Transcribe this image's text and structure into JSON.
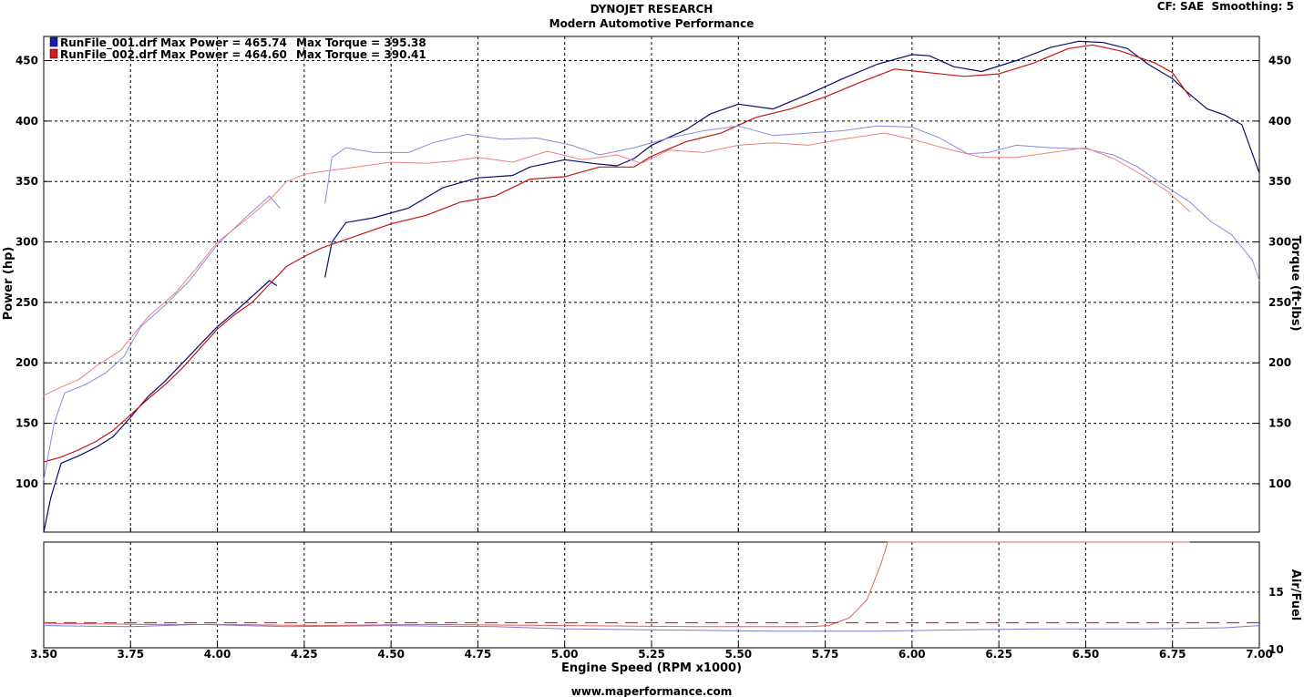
{
  "header": {
    "title": "DYNOJET RESEARCH",
    "subtitle": "Modern Automotive Performance",
    "info": "CF: SAE  Smoothing: 5",
    "footer": "www.maperformance.com"
  },
  "legend": [
    {
      "name": "RunFile_001.drf",
      "power_label": "Max Power = 465.74",
      "torque_label": "Max Torque = 395.38",
      "color": "#1a1ab4"
    },
    {
      "name": "RunFile_002.drf",
      "power_label": "Max Power = 464.60",
      "torque_label": "Max Torque = 390.41",
      "color": "#d21e1e"
    }
  ],
  "colors": {
    "run1_dark": "#0b0b6e",
    "run1_light": "#8a8ae0",
    "run2_dark": "#c81414",
    "run2_light": "#f08080"
  },
  "chart_data": [
    {
      "type": "line",
      "xlabel": "Engine Speed (RPM x1000)",
      "ylabel": "Power (hp)",
      "y2label": "Torque (ft-lbs)",
      "xlim": [
        3.5,
        7.0
      ],
      "ylim": [
        60,
        470
      ],
      "y2lim": [
        60,
        470
      ],
      "xticks": [
        "3.50",
        "3.75",
        "4.00",
        "4.25",
        "4.50",
        "4.75",
        "5.00",
        "5.25",
        "5.50",
        "5.75",
        "6.00",
        "6.25",
        "6.50",
        "6.75",
        "7.00"
      ],
      "yticks": [
        "100",
        "150",
        "200",
        "250",
        "300",
        "350",
        "400",
        "450"
      ],
      "grid": true,
      "legend_position": "top-left",
      "series": [
        {
          "name": "RunFile_001.drf",
          "measure": "power",
          "color": "#0b0b6e",
          "width": 1.2,
          "segments": [
            [
              [
                3.5,
                60
              ],
              [
                3.52,
                88
              ],
              [
                3.55,
                117
              ],
              [
                3.6,
                123
              ],
              [
                3.65,
                130
              ],
              [
                3.7,
                139
              ],
              [
                3.75,
                155
              ],
              [
                3.8,
                172
              ],
              [
                3.85,
                185
              ],
              [
                3.9,
                200
              ],
              [
                3.95,
                215
              ],
              [
                4.0,
                230
              ],
              [
                4.05,
                242
              ],
              [
                4.1,
                255
              ],
              [
                4.15,
                268
              ],
              [
                4.17,
                264
              ]
            ],
            [
              [
                4.31,
                271
              ],
              [
                4.33,
                300
              ],
              [
                4.37,
                316
              ],
              [
                4.45,
                320
              ],
              [
                4.55,
                328
              ],
              [
                4.65,
                345
              ],
              [
                4.75,
                353
              ],
              [
                4.85,
                355
              ],
              [
                4.9,
                362
              ],
              [
                5.0,
                368
              ],
              [
                5.08,
                365
              ],
              [
                5.15,
                363
              ],
              [
                5.2,
                369
              ],
              [
                5.25,
                380
              ],
              [
                5.35,
                393
              ],
              [
                5.42,
                406
              ],
              [
                5.5,
                414
              ],
              [
                5.6,
                410
              ],
              [
                5.7,
                422
              ],
              [
                5.8,
                435
              ],
              [
                5.9,
                447
              ],
              [
                6.0,
                455
              ],
              [
                6.05,
                454
              ],
              [
                6.12,
                445
              ],
              [
                6.2,
                441
              ],
              [
                6.3,
                450
              ],
              [
                6.4,
                461
              ],
              [
                6.48,
                466
              ],
              [
                6.55,
                465
              ],
              [
                6.62,
                460
              ],
              [
                6.68,
                447
              ],
              [
                6.75,
                435
              ],
              [
                6.8,
                422
              ],
              [
                6.85,
                410
              ],
              [
                6.9,
                405
              ],
              [
                6.95,
                397
              ],
              [
                7.0,
                357
              ]
            ]
          ]
        },
        {
          "name": "RunFile_002.drf",
          "measure": "power",
          "color": "#c81414",
          "width": 1.2,
          "segments": [
            [
              [
                3.5,
                118
              ],
              [
                3.55,
                122
              ],
              [
                3.6,
                128
              ],
              [
                3.65,
                135
              ],
              [
                3.7,
                144
              ],
              [
                3.75,
                157
              ],
              [
                3.8,
                170
              ],
              [
                3.85,
                182
              ],
              [
                3.9,
                196
              ],
              [
                3.95,
                212
              ],
              [
                4.0,
                228
              ],
              [
                4.05,
                240
              ],
              [
                4.1,
                250
              ],
              [
                4.15,
                265
              ],
              [
                4.2,
                280
              ],
              [
                4.25,
                288
              ],
              [
                4.3,
                295
              ],
              [
                4.4,
                305
              ],
              [
                4.5,
                315
              ],
              [
                4.6,
                322
              ],
              [
                4.7,
                333
              ],
              [
                4.8,
                338
              ],
              [
                4.9,
                352
              ],
              [
                5.0,
                354
              ],
              [
                5.1,
                362
              ],
              [
                5.2,
                362
              ],
              [
                5.25,
                371
              ],
              [
                5.35,
                383
              ],
              [
                5.45,
                390
              ],
              [
                5.55,
                403
              ],
              [
                5.65,
                410
              ],
              [
                5.75,
                420
              ],
              [
                5.85,
                432
              ],
              [
                5.95,
                443
              ],
              [
                6.05,
                440
              ],
              [
                6.15,
                437
              ],
              [
                6.25,
                439
              ],
              [
                6.35,
                448
              ],
              [
                6.45,
                460
              ],
              [
                6.52,
                463
              ],
              [
                6.6,
                458
              ],
              [
                6.7,
                448
              ],
              [
                6.75,
                440
              ],
              [
                6.8,
                420
              ]
            ]
          ]
        },
        {
          "name": "RunFile_001.drf",
          "measure": "torque",
          "color": "#8a8ae0",
          "width": 1,
          "segments": [
            [
              [
                3.5,
                103
              ],
              [
                3.53,
                150
              ],
              [
                3.56,
                175
              ],
              [
                3.62,
                182
              ],
              [
                3.68,
                192
              ],
              [
                3.73,
                205
              ],
              [
                3.78,
                230
              ],
              [
                3.85,
                248
              ],
              [
                3.92,
                268
              ],
              [
                4.0,
                298
              ],
              [
                4.08,
                320
              ],
              [
                4.15,
                338
              ],
              [
                4.18,
                328
              ]
            ],
            [
              [
                4.31,
                332
              ],
              [
                4.33,
                370
              ],
              [
                4.37,
                378
              ],
              [
                4.45,
                374
              ],
              [
                4.55,
                374
              ],
              [
                4.62,
                382
              ],
              [
                4.72,
                389
              ],
              [
                4.82,
                385
              ],
              [
                4.92,
                386
              ],
              [
                5.02,
                380
              ],
              [
                5.1,
                372
              ],
              [
                5.2,
                378
              ],
              [
                5.3,
                386
              ],
              [
                5.4,
                392
              ],
              [
                5.5,
                396
              ],
              [
                5.6,
                388
              ],
              [
                5.7,
                390
              ],
              [
                5.8,
                392
              ],
              [
                5.9,
                396
              ],
              [
                6.0,
                395
              ],
              [
                6.08,
                386
              ],
              [
                6.16,
                373
              ],
              [
                6.22,
                374
              ],
              [
                6.3,
                380
              ],
              [
                6.4,
                378
              ],
              [
                6.5,
                377
              ],
              [
                6.58,
                372
              ],
              [
                6.65,
                362
              ],
              [
                6.72,
                348
              ],
              [
                6.8,
                333
              ],
              [
                6.86,
                317
              ],
              [
                6.92,
                306
              ],
              [
                6.98,
                285
              ],
              [
                7.0,
                268
              ]
            ]
          ]
        },
        {
          "name": "RunFile_002.drf",
          "measure": "torque",
          "color": "#f08080",
          "width": 1,
          "segments": [
            [
              [
                3.5,
                173
              ],
              [
                3.55,
                180
              ],
              [
                3.6,
                186
              ],
              [
                3.65,
                197
              ],
              [
                3.72,
                210
              ],
              [
                3.8,
                238
              ],
              [
                3.88,
                258
              ],
              [
                3.95,
                282
              ],
              [
                4.0,
                300
              ],
              [
                4.08,
                318
              ],
              [
                4.15,
                335
              ],
              [
                4.2,
                350
              ],
              [
                4.25,
                356
              ],
              [
                4.32,
                359
              ],
              [
                4.4,
                362
              ],
              [
                4.5,
                366
              ],
              [
                4.6,
                365
              ],
              [
                4.68,
                367
              ],
              [
                4.75,
                370
              ],
              [
                4.85,
                366
              ],
              [
                4.95,
                375
              ],
              [
                5.05,
                368
              ],
              [
                5.15,
                372
              ],
              [
                5.22,
                365
              ],
              [
                5.3,
                376
              ],
              [
                5.4,
                374
              ],
              [
                5.5,
                380
              ],
              [
                5.6,
                382
              ],
              [
                5.7,
                380
              ],
              [
                5.8,
                385
              ],
              [
                5.92,
                390
              ],
              [
                6.0,
                385
              ],
              [
                6.1,
                377
              ],
              [
                6.2,
                370
              ],
              [
                6.3,
                370
              ],
              [
                6.4,
                374
              ],
              [
                6.5,
                378
              ],
              [
                6.58,
                369
              ],
              [
                6.66,
                356
              ],
              [
                6.74,
                341
              ],
              [
                6.8,
                325
              ]
            ]
          ]
        }
      ]
    },
    {
      "type": "line",
      "xlabel": "Engine Speed (RPM x1000)",
      "y2label": "Air/Fuel",
      "xlim": [
        3.5,
        7.0
      ],
      "y2lim": [
        10,
        19.5
      ],
      "xticks": [
        "3.50",
        "3.75",
        "4.00",
        "4.25",
        "4.50",
        "4.75",
        "5.00",
        "5.25",
        "5.50",
        "5.75",
        "6.00",
        "6.25",
        "6.50",
        "6.75",
        "7.00"
      ],
      "y2ticks": [
        "10",
        "15"
      ],
      "grid": true,
      "series": [
        {
          "name": "RunFile_001.drf",
          "measure": "air_fuel",
          "color": "#7a7ad8",
          "width": 1,
          "points": [
            [
              3.5,
              12.0
            ],
            [
              3.75,
              11.9
            ],
            [
              3.95,
              12.1
            ],
            [
              4.2,
              11.9
            ],
            [
              4.5,
              12.0
            ],
            [
              4.8,
              11.9
            ],
            [
              5.0,
              11.7
            ],
            [
              5.3,
              11.6
            ],
            [
              5.6,
              11.5
            ],
            [
              5.9,
              11.5
            ],
            [
              6.1,
              11.6
            ],
            [
              6.4,
              11.7
            ],
            [
              6.7,
              11.7
            ],
            [
              6.9,
              11.8
            ],
            [
              7.0,
              12.0
            ]
          ]
        },
        {
          "name": "RunFile_002.drf",
          "measure": "air_fuel",
          "color": "#e06060",
          "width": 1,
          "points": [
            [
              3.5,
              12.2
            ],
            [
              3.8,
              12.1
            ],
            [
              4.0,
              12.1
            ],
            [
              4.3,
              12.0
            ],
            [
              4.6,
              12.1
            ],
            [
              5.0,
              12.0
            ],
            [
              5.4,
              11.9
            ],
            [
              5.7,
              11.9
            ],
            [
              5.76,
              12.0
            ],
            [
              5.82,
              12.7
            ],
            [
              5.87,
              14.3
            ],
            [
              5.91,
              17.5
            ],
            [
              5.93,
              19.5
            ],
            [
              6.8,
              19.5
            ]
          ]
        },
        {
          "name": "reference",
          "measure": "air_fuel",
          "color": "#d22828",
          "width": 1.2,
          "dash": "14,8",
          "points": [
            [
              3.5,
              12.25
            ],
            [
              7.0,
              12.25
            ]
          ]
        }
      ]
    }
  ]
}
